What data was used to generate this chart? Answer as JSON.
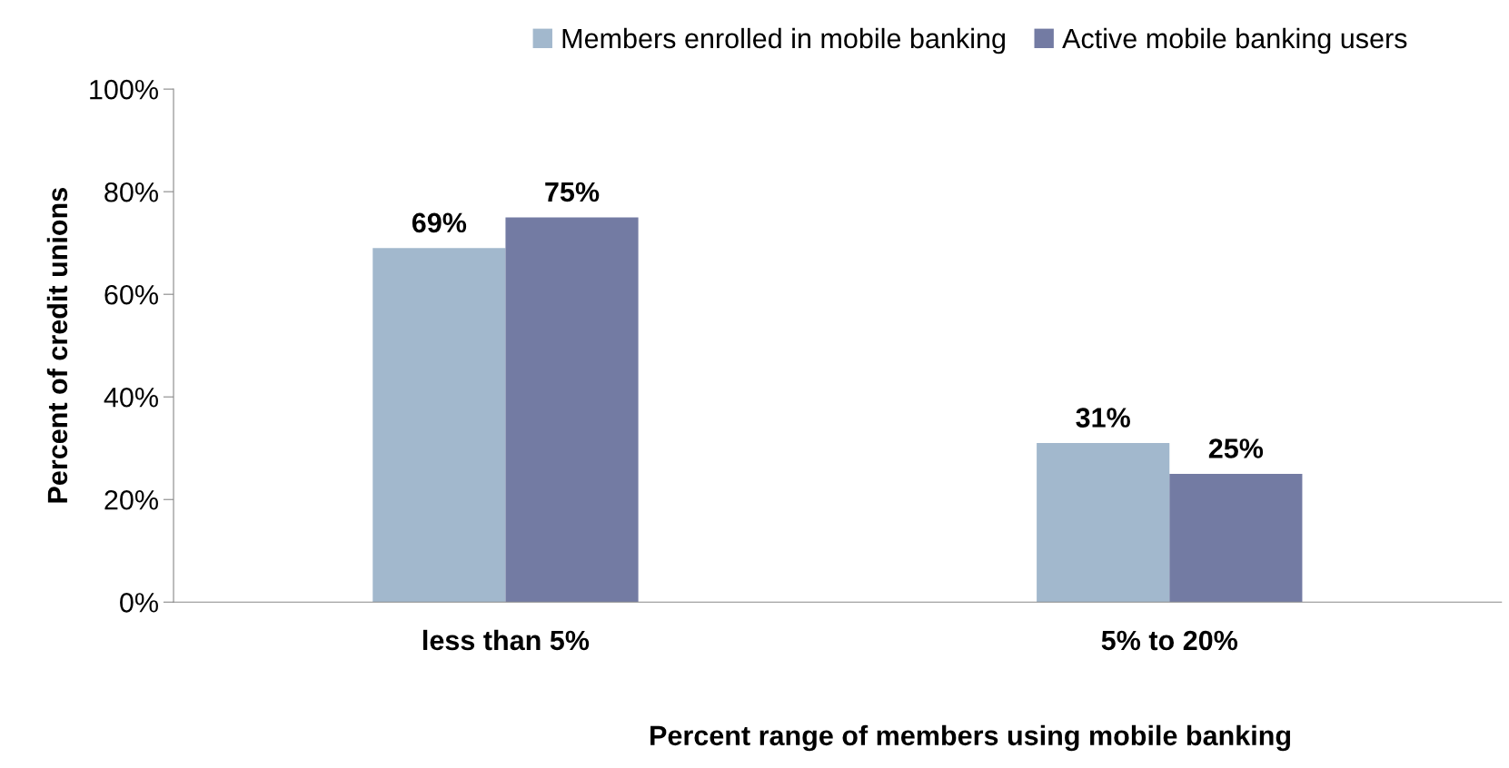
{
  "chart_data": {
    "type": "bar",
    "xlabel": "Percent range of members using mobile banking",
    "ylabel": "Percent of credit unions",
    "categories": [
      "less than 5%",
      "5% to 20%"
    ],
    "series": [
      {
        "name": "Members enrolled in mobile banking",
        "color": "#a2b8cd",
        "values": [
          69,
          31
        ],
        "value_labels": [
          "69%",
          "31%"
        ]
      },
      {
        "name": "Active mobile banking users",
        "color": "#737ba3",
        "values": [
          75,
          25
        ],
        "value_labels": [
          "75%",
          "25%"
        ]
      }
    ],
    "ylim": [
      0,
      100
    ],
    "yticks": [
      {
        "value": 0,
        "label": "0%"
      },
      {
        "value": 20,
        "label": "20%"
      },
      {
        "value": 40,
        "label": "40%"
      },
      {
        "value": 60,
        "label": "60%"
      },
      {
        "value": 80,
        "label": "80%"
      },
      {
        "value": 100,
        "label": "100%"
      }
    ],
    "grid": false,
    "legend": "top"
  }
}
